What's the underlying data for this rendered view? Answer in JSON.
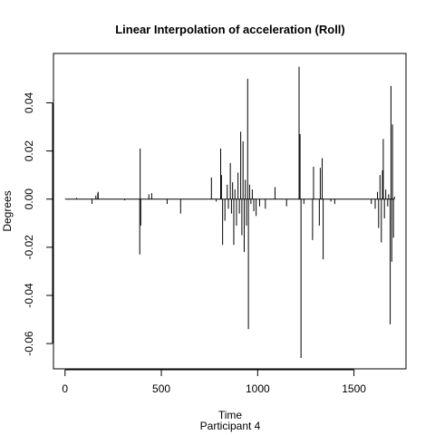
{
  "chart_data": {
    "type": "line",
    "title": "Linear Interpolation of acceleration (Roll)",
    "xlabel": "Time",
    "sublabel": "Participant  4",
    "ylabel": "Degrees",
    "xlim": [
      -60,
      1770
    ],
    "ylim": [
      -0.0705,
      0.0605
    ],
    "x_ticks": [
      0,
      500,
      1000,
      1500
    ],
    "x_tick_labels": [
      "0",
      "500",
      "1000",
      "1500"
    ],
    "y_ticks": [
      -0.06,
      -0.04,
      -0.02,
      0.0,
      0.02,
      0.04
    ],
    "y_tick_labels": [
      "-0.06",
      "-0.04",
      "-0.02",
      "0.00",
      "0.02",
      "0.04"
    ],
    "grid": false,
    "line_color": "#000000",
    "baseline_start": 0,
    "baseline_end": 1710,
    "baseline_value": 0,
    "spikes": [
      {
        "x": 60,
        "y": 0.0005
      },
      {
        "x": 140,
        "y": -0.002
      },
      {
        "x": 160,
        "y": 0.0015
      },
      {
        "x": 170,
        "y": 0.0025
      },
      {
        "x": 172,
        "y": 0.003
      },
      {
        "x": 310,
        "y": -0.0005
      },
      {
        "x": 388,
        "y": -0.023
      },
      {
        "x": 390,
        "y": 0.021
      },
      {
        "x": 393,
        "y": -0.011
      },
      {
        "x": 435,
        "y": 0.002
      },
      {
        "x": 450,
        "y": 0.0025
      },
      {
        "x": 530,
        "y": -0.002
      },
      {
        "x": 600,
        "y": -0.006
      },
      {
        "x": 760,
        "y": 0.009
      },
      {
        "x": 785,
        "y": -0.001
      },
      {
        "x": 808,
        "y": 0.021
      },
      {
        "x": 812,
        "y": 0.01
      },
      {
        "x": 818,
        "y": -0.019
      },
      {
        "x": 830,
        "y": -0.009
      },
      {
        "x": 842,
        "y": 0.006
      },
      {
        "x": 848,
        "y": -0.004
      },
      {
        "x": 858,
        "y": 0.015
      },
      {
        "x": 864,
        "y": -0.006
      },
      {
        "x": 870,
        "y": 0.007
      },
      {
        "x": 876,
        "y": -0.019
      },
      {
        "x": 882,
        "y": 0.004
      },
      {
        "x": 890,
        "y": -0.011
      },
      {
        "x": 898,
        "y": 0.011
      },
      {
        "x": 905,
        "y": -0.006
      },
      {
        "x": 912,
        "y": 0.028
      },
      {
        "x": 918,
        "y": -0.015
      },
      {
        "x": 924,
        "y": 0.024
      },
      {
        "x": 930,
        "y": -0.022
      },
      {
        "x": 936,
        "y": 0.008
      },
      {
        "x": 942,
        "y": -0.011
      },
      {
        "x": 948,
        "y": 0.05
      },
      {
        "x": 952,
        "y": -0.054
      },
      {
        "x": 958,
        "y": 0.006
      },
      {
        "x": 965,
        "y": -0.002
      },
      {
        "x": 972,
        "y": 0.004
      },
      {
        "x": 980,
        "y": -0.005
      },
      {
        "x": 992,
        "y": -0.007
      },
      {
        "x": 1010,
        "y": -0.003
      },
      {
        "x": 1040,
        "y": -0.004
      },
      {
        "x": 1090,
        "y": 0.005
      },
      {
        "x": 1150,
        "y": -0.003
      },
      {
        "x": 1215,
        "y": 0.055
      },
      {
        "x": 1220,
        "y": 0.027
      },
      {
        "x": 1225,
        "y": -0.066
      },
      {
        "x": 1240,
        "y": -0.002
      },
      {
        "x": 1285,
        "y": -0.017
      },
      {
        "x": 1290,
        "y": 0.0135
      },
      {
        "x": 1320,
        "y": -0.011
      },
      {
        "x": 1325,
        "y": 0.013
      },
      {
        "x": 1335,
        "y": 0.017
      },
      {
        "x": 1340,
        "y": -0.025
      },
      {
        "x": 1380,
        "y": -0.001
      },
      {
        "x": 1400,
        "y": -0.002
      },
      {
        "x": 1590,
        "y": -0.002
      },
      {
        "x": 1610,
        "y": -0.004
      },
      {
        "x": 1622,
        "y": 0.003
      },
      {
        "x": 1628,
        "y": -0.012
      },
      {
        "x": 1635,
        "y": 0.01
      },
      {
        "x": 1642,
        "y": -0.018
      },
      {
        "x": 1648,
        "y": 0.012
      },
      {
        "x": 1652,
        "y": 0.025
      },
      {
        "x": 1658,
        "y": -0.008
      },
      {
        "x": 1665,
        "y": 0.004
      },
      {
        "x": 1675,
        "y": -0.003
      },
      {
        "x": 1680,
        "y": 0.002
      },
      {
        "x": 1688,
        "y": -0.052
      },
      {
        "x": 1692,
        "y": 0.047
      },
      {
        "x": 1696,
        "y": -0.026
      },
      {
        "x": 1700,
        "y": 0.031
      },
      {
        "x": 1705,
        "y": -0.016
      },
      {
        "x": 1710,
        "y": 0.001
      }
    ]
  }
}
